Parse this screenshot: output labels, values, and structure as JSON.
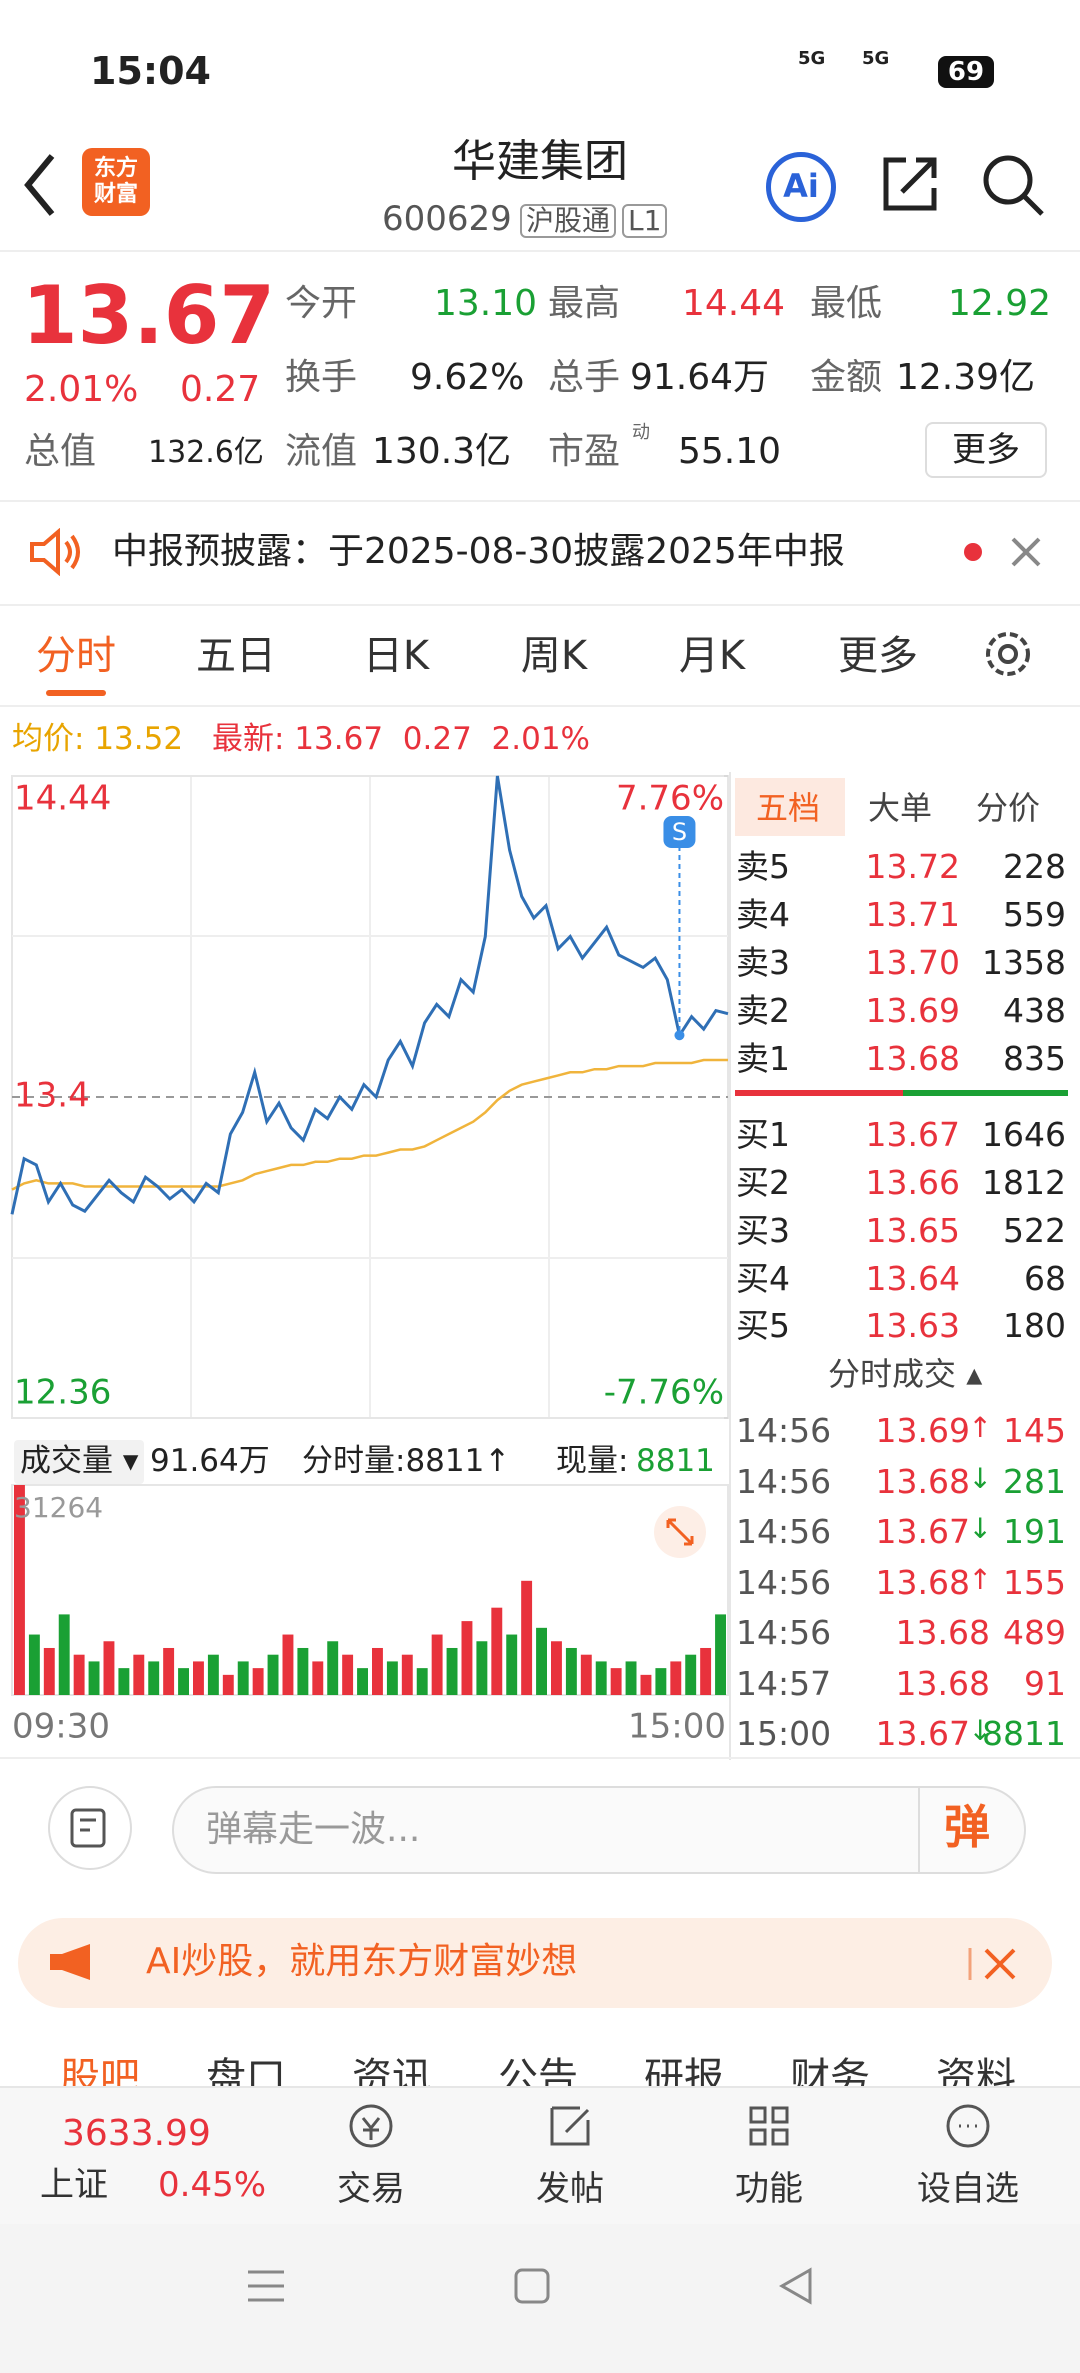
{
  "status": {
    "time": "15:04",
    "battery": "69",
    "signal_a": "5G",
    "signal_b": "5G"
  },
  "header": {
    "logo_top": "东方",
    "logo_bottom": "财富",
    "title": "华建集团",
    "code": "600629",
    "market": "沪股通",
    "level": "L1",
    "ai": "Ai"
  },
  "quote": {
    "price": "13.67",
    "change_pct": "2.01%",
    "change": "0.27",
    "open_label": "今开",
    "open": "13.10",
    "high_label": "最高",
    "high": "14.44",
    "low_label": "最低",
    "low": "12.92",
    "turnover_label": "换手",
    "turnover": "9.62%",
    "volume_label": "总手",
    "volume": "91.64万",
    "amount_label": "金额",
    "amount": "12.39亿",
    "mcap_label": "总值",
    "mcap": "132.6亿",
    "float_label": "流值",
    "float": "130.3亿",
    "pe_label": "市盈",
    "pe_sup": "动",
    "pe": "55.10",
    "more": "更多"
  },
  "notice": {
    "text": "中报预披露：于2025-08-30披露2025年中报"
  },
  "tabs": [
    "分时",
    "五日",
    "日K",
    "周K",
    "月K",
    "更多"
  ],
  "info": {
    "avg_label": "均价:",
    "avg": "13.52",
    "latest_label": "最新:",
    "latest": "13.67",
    "change": "0.27",
    "change_pct": "2.01%"
  },
  "chart_data": [
    {
      "type": "line",
      "ylim": [
        12.36,
        14.44
      ],
      "yticks": [
        14.44,
        13.4,
        12.36
      ],
      "y2lim": [
        -7.76,
        7.76
      ],
      "y2ticks": [
        {
          "value": 7.76,
          "label": "7.76%"
        },
        {
          "value": -7.76,
          "label": "-7.76%"
        }
      ],
      "marker": "S",
      "series": [
        {
          "name": "最新",
          "color": "#2f6fb5",
          "values": [
            13.02,
            13.2,
            13.18,
            13.06,
            13.12,
            13.05,
            13.03,
            13.08,
            13.13,
            13.09,
            13.06,
            13.14,
            13.11,
            13.07,
            13.1,
            13.06,
            13.12,
            13.09,
            13.28,
            13.35,
            13.48,
            13.32,
            13.38,
            13.3,
            13.26,
            13.36,
            13.33,
            13.4,
            13.36,
            13.44,
            13.4,
            13.52,
            13.58,
            13.5,
            13.64,
            13.7,
            13.66,
            13.78,
            13.74,
            13.92,
            14.44,
            14.2,
            14.05,
            13.98,
            14.02,
            13.88,
            13.92,
            13.85,
            13.9,
            13.95,
            13.86,
            13.84,
            13.82,
            13.85,
            13.78,
            13.6,
            13.66,
            13.62,
            13.68,
            13.67
          ]
        },
        {
          "name": "均价",
          "color": "#f0b43c",
          "values": [
            13.1,
            13.12,
            13.13,
            13.12,
            13.12,
            13.12,
            13.11,
            13.11,
            13.11,
            13.11,
            13.11,
            13.11,
            13.11,
            13.11,
            13.11,
            13.11,
            13.11,
            13.11,
            13.12,
            13.13,
            13.15,
            13.16,
            13.17,
            13.18,
            13.18,
            13.19,
            13.19,
            13.2,
            13.2,
            13.21,
            13.21,
            13.22,
            13.23,
            13.23,
            13.24,
            13.26,
            13.28,
            13.3,
            13.32,
            13.35,
            13.39,
            13.42,
            13.44,
            13.45,
            13.46,
            13.47,
            13.48,
            13.48,
            13.49,
            13.49,
            13.5,
            13.5,
            13.5,
            13.51,
            13.51,
            13.51,
            13.51,
            13.52,
            13.52,
            13.52
          ]
        }
      ]
    },
    {
      "type": "bar",
      "ylim": [
        0,
        31264
      ],
      "yticks": [
        31264
      ],
      "x_labels": [
        "09:30",
        "15:00"
      ],
      "values": [
        31264,
        9000,
        7000,
        12000,
        6000,
        5000,
        8000,
        4000,
        6000,
        5000,
        7000,
        4000,
        5000,
        6000,
        3000,
        5000,
        4000,
        6000,
        9000,
        7000,
        5000,
        8000,
        6000,
        4000,
        7000,
        5000,
        6000,
        4000,
        9000,
        7000,
        11000,
        8000,
        13000,
        9000,
        17000,
        10000,
        8000,
        7000,
        6000,
        5000,
        4000,
        5000,
        3000,
        4000,
        5000,
        6000,
        7000,
        12000
      ],
      "colors": [
        "#e8323c",
        "#1aa034"
      ]
    }
  ],
  "volume_header": {
    "label": "成交量",
    "total": "91.64万",
    "last_label": "分时量:8811↑",
    "now_label": "现量:",
    "now": "8811"
  },
  "book": {
    "tabs": [
      "五档",
      "大单",
      "分价"
    ],
    "asks": [
      {
        "label": "卖5",
        "price": "13.72",
        "vol": "228"
      },
      {
        "label": "卖4",
        "price": "13.71",
        "vol": "559"
      },
      {
        "label": "卖3",
        "price": "13.70",
        "vol": "1358"
      },
      {
        "label": "卖2",
        "price": "13.69",
        "vol": "438"
      },
      {
        "label": "卖1",
        "price": "13.68",
        "vol": "835"
      }
    ],
    "bids": [
      {
        "label": "买1",
        "price": "13.67",
        "vol": "1646"
      },
      {
        "label": "买2",
        "price": "13.66",
        "vol": "1812"
      },
      {
        "label": "买3",
        "price": "13.65",
        "vol": "522"
      },
      {
        "label": "买4",
        "price": "13.64",
        "vol": "68"
      },
      {
        "label": "买5",
        "price": "13.63",
        "vol": "180"
      }
    ]
  },
  "trades": {
    "title": "分时成交",
    "rows": [
      {
        "time": "14:56",
        "price": "13.69",
        "dir": "↑",
        "vol": "145",
        "color": "#e8323c"
      },
      {
        "time": "14:56",
        "price": "13.68",
        "dir": "↓",
        "vol": "281",
        "color": "#1aa034"
      },
      {
        "time": "14:56",
        "price": "13.67",
        "dir": "↓",
        "vol": "191",
        "color": "#1aa034"
      },
      {
        "time": "14:56",
        "price": "13.68",
        "dir": "↑",
        "vol": "155",
        "color": "#e8323c"
      },
      {
        "time": "14:56",
        "price": "13.68",
        "vol": "489",
        "color": "#e8323c"
      },
      {
        "time": "14:57",
        "price": "13.68",
        "vol": "91",
        "color": "#e8323c"
      },
      {
        "time": "15:00",
        "price": "13.67",
        "dir": "↓",
        "vol": "8811",
        "color": "#1aa034"
      }
    ]
  },
  "comment": {
    "placeholder": "弹幕走一波...",
    "button": "弹"
  },
  "banner": {
    "text": "AI炒股，就用东方财富妙想"
  },
  "section_tabs": [
    "股吧",
    "盘口",
    "资讯",
    "公告",
    "研报",
    "财务",
    "资料"
  ],
  "bottom_nav": {
    "index_value": "3633.99",
    "index_name": "上证",
    "index_pct": "0.45%",
    "items": [
      "交易",
      "发帖",
      "功能",
      "设自选"
    ]
  }
}
